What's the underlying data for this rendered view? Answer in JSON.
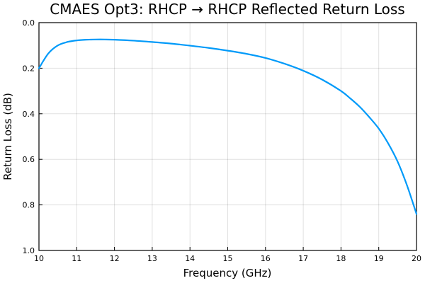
{
  "chart_data": {
    "type": "line",
    "title": "CMAES Opt3: RHCP → RHCP Reflected Return Loss",
    "xlabel": "Frequency (GHz)",
    "ylabel": "Return Loss (dB)",
    "xlim": [
      10,
      20
    ],
    "ylim": [
      0.0,
      1.0
    ],
    "y_inverted": true,
    "grid": true,
    "legend": "none",
    "x_ticks": [
      10,
      11,
      12,
      13,
      14,
      15,
      16,
      17,
      18,
      19,
      20
    ],
    "x_tick_labels": [
      "10",
      "11",
      "12",
      "13",
      "14",
      "15",
      "16",
      "17",
      "18",
      "19",
      "20"
    ],
    "y_ticks": [
      0.0,
      0.2,
      0.4,
      0.6,
      0.8,
      1.0
    ],
    "y_tick_labels": [
      "0.0",
      "0.2",
      "0.4",
      "0.6",
      "0.8",
      "1.0"
    ],
    "series": [
      {
        "color": "#009af9",
        "x": [
          10.0,
          10.25,
          10.5,
          10.75,
          11.0,
          11.25,
          11.5,
          11.75,
          12.0,
          12.5,
          13.0,
          13.5,
          14.0,
          14.5,
          15.0,
          15.5,
          16.0,
          16.5,
          17.0,
          17.5,
          18.0,
          18.25,
          18.5,
          18.75,
          19.0,
          19.25,
          19.5,
          19.75,
          20.0
        ],
        "y": [
          0.2,
          0.135,
          0.1,
          0.085,
          0.078,
          0.075,
          0.074,
          0.074,
          0.075,
          0.079,
          0.085,
          0.092,
          0.101,
          0.111,
          0.123,
          0.137,
          0.155,
          0.18,
          0.211,
          0.25,
          0.3,
          0.333,
          0.37,
          0.415,
          0.465,
          0.53,
          0.61,
          0.715,
          0.84
        ]
      }
    ]
  }
}
